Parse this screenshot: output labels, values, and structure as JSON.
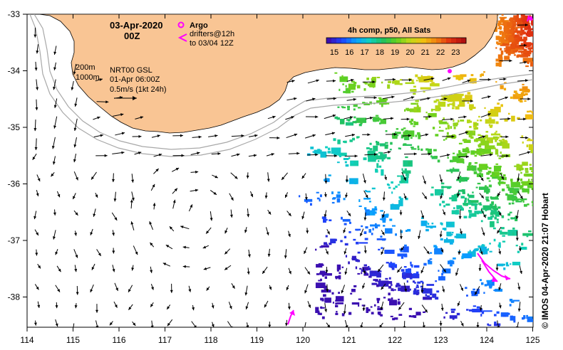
{
  "map": {
    "date_title": "03-Apr-2020",
    "time_title": "00Z",
    "argo_label": "Argo",
    "drifters_label": "drifters@12h",
    "drifters_until": "to 03/04 12Z",
    "isobath_200": "200m",
    "isobath_1000": "1000m",
    "product_label": "NRT00 GSL",
    "product_date": "01-Apr 06:00Z",
    "scale_label": "0.5m/s (1kt 24h)",
    "sst_title": "4h comp, p50, All Sats",
    "credit": "© IMOS 04-Apr-2020 21:07 Hobart",
    "longitude_ticks": [
      "114",
      "115",
      "116",
      "117",
      "118",
      "119",
      "120",
      "121",
      "122",
      "123",
      "124",
      "125"
    ],
    "latitude_ticks": [
      "-33",
      "-34",
      "-35",
      "-36",
      "-37",
      "-38"
    ],
    "colorbar_ticks": [
      "15",
      "16",
      "17",
      "18",
      "19",
      "20",
      "21",
      "22",
      "23"
    ],
    "colors": {
      "land": "#f9c594",
      "argo": "#ff00ff",
      "drifter": "#ff00ff",
      "isobath": "#a0a0a0"
    }
  }
}
